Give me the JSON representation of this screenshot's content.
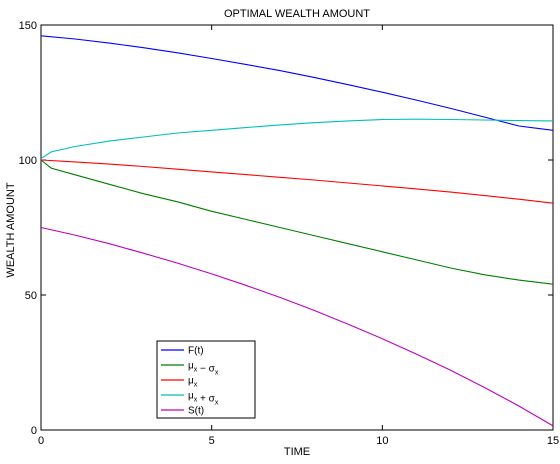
{
  "chart_data": {
    "type": "line",
    "title": "OPTIMAL WEALTH AMOUNT",
    "xlabel": "TIME",
    "ylabel": "WEALTH AMOUNT",
    "xlim": [
      0,
      15
    ],
    "ylim": [
      0,
      150
    ],
    "xticks": [
      0,
      5,
      10,
      15
    ],
    "yticks": [
      0,
      50,
      100,
      150
    ],
    "grid": false,
    "legend_position": "lower-left",
    "series": [
      {
        "key": "F",
        "name": "F(t)",
        "color": "#0000ff",
        "x": [
          0,
          1,
          2,
          3,
          4,
          5,
          6,
          7,
          8,
          9,
          10,
          11,
          12,
          13,
          14,
          15
        ],
        "values": [
          146,
          144.8,
          143.3,
          141.6,
          139.7,
          137.6,
          135.4,
          133.1,
          130.6,
          127.9,
          125.1,
          122.2,
          119.1,
          115.9,
          112.6,
          111
        ]
      },
      {
        "key": "mu_minus",
        "name": "μx − σx",
        "color": "#007f00",
        "x": [
          0,
          0.3,
          1,
          2,
          3,
          4,
          5,
          6,
          7,
          8,
          9,
          10,
          11,
          12,
          13,
          14,
          15
        ],
        "values": [
          100,
          97,
          94.5,
          91,
          87.5,
          84.5,
          81,
          78,
          75,
          72,
          69,
          66,
          63,
          60,
          57.5,
          55.5,
          54
        ]
      },
      {
        "key": "mu",
        "name": "μx",
        "color": "#ff0000",
        "x": [
          0,
          1,
          2,
          3,
          4,
          5,
          6,
          7,
          8,
          9,
          10,
          11,
          12,
          13,
          14,
          15
        ],
        "values": [
          100,
          99.3,
          98.5,
          97.6,
          96.6,
          95.6,
          94.6,
          93.6,
          92.6,
          91.5,
          90.4,
          89.3,
          88.1,
          86.8,
          85.5,
          84
        ]
      },
      {
        "key": "mu_plus",
        "name": "μx + σx",
        "color": "#00bfbf",
        "x": [
          0,
          0.3,
          1,
          2,
          3,
          4,
          5,
          6,
          7,
          8,
          9,
          10,
          11,
          12,
          13,
          14,
          15
        ],
        "values": [
          100.5,
          103,
          105,
          107,
          108.5,
          110,
          111,
          112,
          113,
          113.8,
          114.5,
          115,
          115.1,
          115,
          114.8,
          114.6,
          114.5
        ]
      },
      {
        "key": "S",
        "name": "S(t)",
        "color": "#bf00bf",
        "x": [
          0,
          1,
          2,
          3,
          4,
          5,
          6,
          7,
          8,
          9,
          10,
          11,
          12,
          13,
          14,
          15
        ],
        "values": [
          75,
          72.2,
          69,
          65.5,
          61.8,
          57.8,
          53.6,
          49.1,
          44.3,
          39.2,
          33.8,
          28.1,
          22.1,
          15.7,
          8.9,
          1.5
        ]
      }
    ]
  }
}
